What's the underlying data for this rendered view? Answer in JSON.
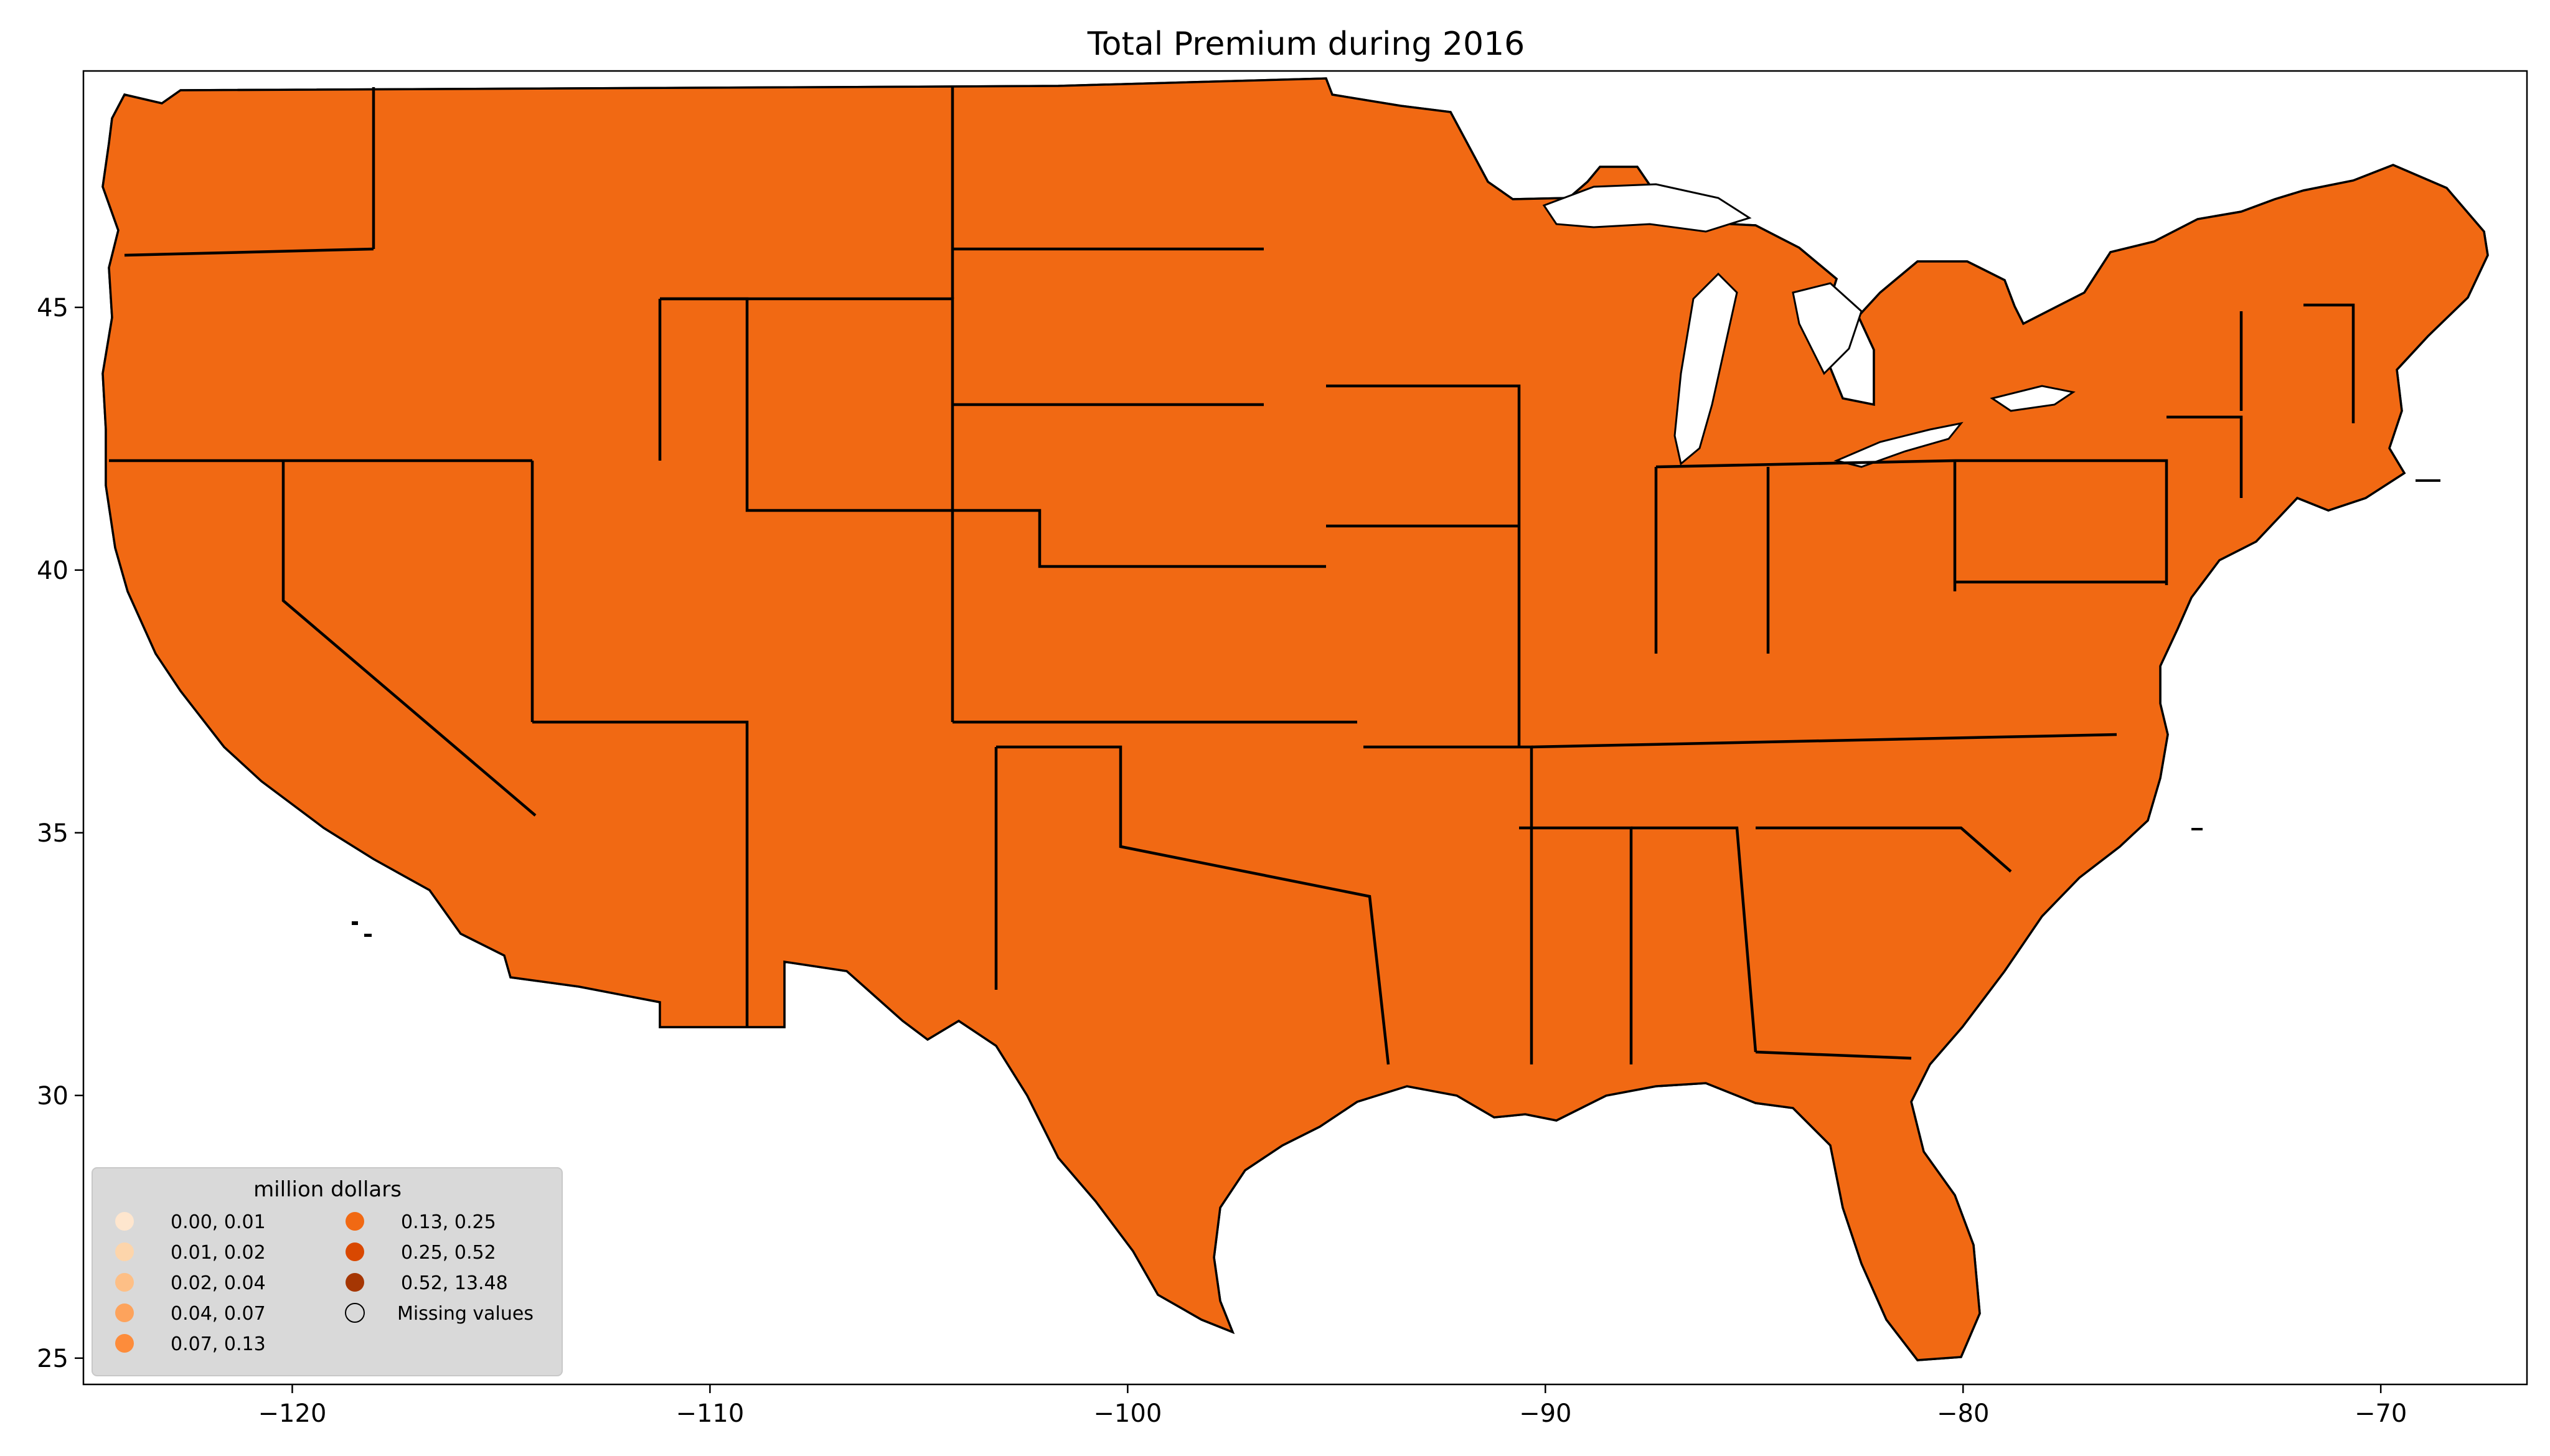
{
  "title": "Total  Premium during 2016",
  "x_ticks": [
    "−120",
    "−110",
    "−100",
    "−90",
    "−80",
    "−70"
  ],
  "y_ticks": [
    "25",
    "30",
    "35",
    "40",
    "45"
  ],
  "legend": {
    "title": "million dollars",
    "placement": "lower-left",
    "items": [
      {
        "label": "0.00,  0.01",
        "color": "#fee6ce"
      },
      {
        "label": "0.01,  0.02",
        "color": "#fdd5ab"
      },
      {
        "label": "0.02,  0.04",
        "color": "#fdbf86"
      },
      {
        "label": "0.04,  0.07",
        "color": "#fda35c"
      },
      {
        "label": "0.07,  0.13",
        "color": "#fd8c3b"
      },
      {
        "label": "0.13,  0.25",
        "color": "#f16913"
      },
      {
        "label": "0.25,  0.52",
        "color": "#d94801"
      },
      {
        "label": "0.52, 13.48",
        "color": "#a53603"
      },
      {
        "label": "Missing values",
        "color": "#d3d3d3"
      }
    ]
  },
  "map": {
    "type": "choropleth",
    "region": "contiguous-united-states",
    "unit": "county",
    "missing_color": "#d3d3d3",
    "border_color": "#000000",
    "xlim": [
      -125,
      -66.5
    ],
    "ylim": [
      24.5,
      49.5
    ]
  }
}
